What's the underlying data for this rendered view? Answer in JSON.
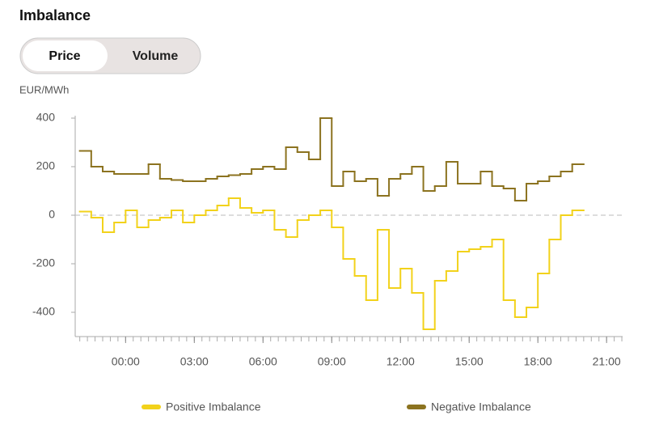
{
  "chart_data": {
    "type": "step-line",
    "title": "Imbalance",
    "toggle": [
      "Price",
      "Volume"
    ],
    "active_toggle": 0,
    "y_label": "EUR/MWh",
    "x": [
      -2,
      -1.5,
      -1,
      -0.5,
      0,
      0.5,
      1,
      1.5,
      2,
      2.5,
      3,
      3.5,
      4,
      4.5,
      5,
      5.5,
      6,
      6.5,
      7,
      7.5,
      8,
      8.5,
      9,
      9.5,
      10,
      10.5,
      11,
      11.5,
      12,
      12.5,
      13,
      13.5,
      14,
      14.5,
      15,
      15.5,
      16,
      16.5,
      17,
      17.5,
      18,
      18.5,
      19,
      19.5
    ],
    "series": [
      {
        "name": "Positive Imbalance",
        "color": "#f2d21b",
        "values": [
          15,
          -10,
          -70,
          -30,
          20,
          -50,
          -20,
          -10,
          20,
          -30,
          0,
          20,
          40,
          70,
          30,
          10,
          20,
          -60,
          -90,
          -20,
          0,
          20,
          -50,
          -180,
          -250,
          -350,
          -60,
          -300,
          -220,
          -320,
          -470,
          -270,
          -230,
          -150,
          -140,
          -130,
          -100,
          -350,
          -420,
          -380,
          -240,
          -100,
          0,
          20
        ]
      },
      {
        "name": "Negative Imbalance",
        "color": "#8c7320",
        "values": [
          265,
          200,
          180,
          170,
          170,
          170,
          210,
          150,
          145,
          140,
          140,
          150,
          160,
          165,
          170,
          190,
          200,
          190,
          280,
          260,
          230,
          400,
          120,
          180,
          140,
          150,
          80,
          150,
          170,
          200,
          100,
          120,
          220,
          130,
          130,
          180,
          120,
          110,
          60,
          130,
          140,
          160,
          180,
          210
        ]
      }
    ],
    "xlim": [
      -2.2,
      21.7
    ],
    "xticks": [
      {
        "value": 0,
        "label": "00:00"
      },
      {
        "value": 3,
        "label": "03:00"
      },
      {
        "value": 6,
        "label": "06:00"
      },
      {
        "value": 9,
        "label": "09:00"
      },
      {
        "value": 12,
        "label": "12:00"
      },
      {
        "value": 15,
        "label": "15:00"
      },
      {
        "value": 18,
        "label": "18:00"
      },
      {
        "value": 21,
        "label": "21:00"
      }
    ],
    "ylim": [
      -500,
      410
    ],
    "yticks": [
      400,
      200,
      0,
      -200,
      -400
    ],
    "zero_line": true
  }
}
